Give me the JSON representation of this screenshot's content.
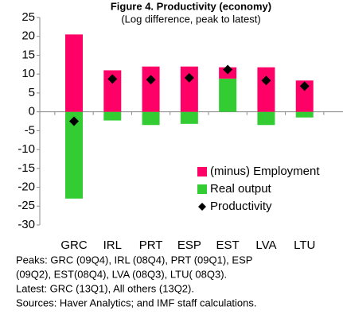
{
  "chart_data": {
    "type": "bar",
    "stacked": true,
    "title": "Figure 4. Productivity (economy)",
    "subtitle": "(Log difference, peak to latest)",
    "categories": [
      "GRC",
      "IRL",
      "PRT",
      "ESP",
      "EST",
      "LVA",
      "LTU"
    ],
    "series": [
      {
        "name": "Real output",
        "type": "bar",
        "color": "#33cc33",
        "values": [
          -23,
          -2.3,
          -3.5,
          -3.2,
          8.8,
          -3.5,
          -1.5
        ]
      },
      {
        "name": "(minus) Employment",
        "type": "bar",
        "color": "#ff0066",
        "values": [
          20.5,
          11,
          12,
          12,
          3,
          11.8,
          8.3
        ]
      },
      {
        "name": "Productivity",
        "type": "scatter",
        "marker": "diamond",
        "color": "#000000",
        "values": [
          -2.5,
          8.7,
          8.5,
          9,
          11.2,
          8.3,
          6.8
        ]
      }
    ],
    "legend_order": [
      1,
      0,
      2
    ],
    "ylim": [
      -30,
      25
    ],
    "yticks": [
      -30,
      -25,
      -20,
      -15,
      -10,
      -5,
      0,
      5,
      10,
      15,
      20,
      25
    ],
    "notes": [
      "Peaks: GRC (09Q4), IRL (08Q4), PRT (09Q1), ESP",
      "(09Q2), EST(08Q4), LVA (08Q3), LTU( 08Q3).",
      "Latest: GRC (13Q1), All others (13Q2).",
      "Sources: Haver Analytics; and IMF staff calculations."
    ]
  }
}
